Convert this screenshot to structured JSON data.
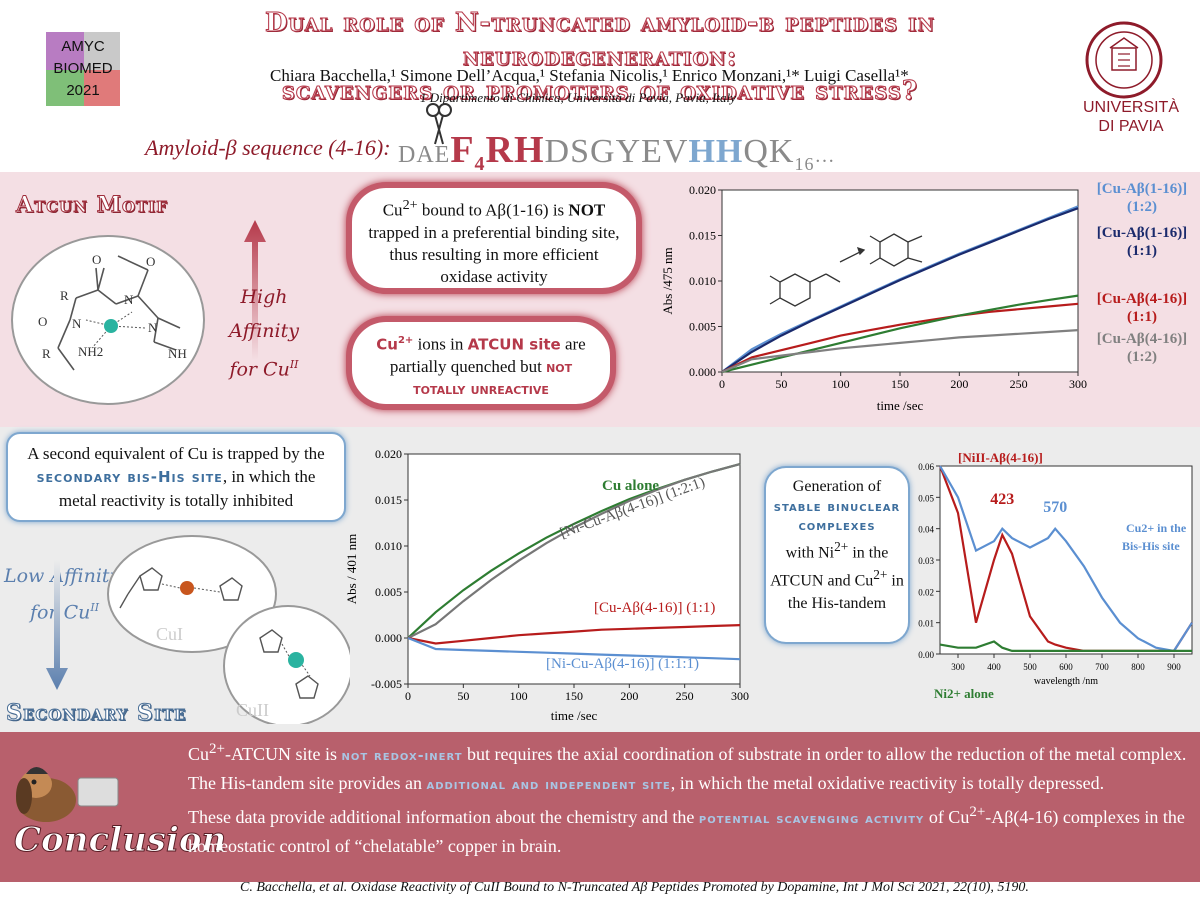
{
  "header": {
    "title_line1": "Dual role of N-truncated amyloid-β peptides in neurodegeneration:",
    "title_line2": "scavengers or promoters of oxidative stress?",
    "authors": "Chiara Bacchella,¹ Simone Dell’Acqua,¹ Stefania Nicolis,¹ Enrico Monzani,¹* Luigi Casella¹*",
    "affiliation": "1 Dipartimento di Chimica, Università di Pavia, Pavia, Italy",
    "logo_left": [
      "AMYC",
      "BIOMED",
      "2021"
    ],
    "logo_right": [
      "UNIVERSITÀ",
      "DI PAVIA"
    ]
  },
  "sequence": {
    "label": "Amyloid-β sequence (4-16):",
    "prefix": "DAE",
    "f": "F",
    "f_sub": "4",
    "rh": "RH",
    "mid": "DSGYEV",
    "hh": "HH",
    "qk": "QK",
    "end_sub": "16",
    "dots": "…"
  },
  "atcun": {
    "heading": "Atcun Motif",
    "affinity_line1": "High Affinity",
    "affinity_line2": "for Cu",
    "affinity_sup": "II",
    "mol_labels": [
      "R",
      "O",
      "N",
      "N",
      "O",
      "R",
      "NH2",
      "N",
      "NH",
      "O"
    ],
    "cloud1_a": "Cu",
    "cloud1_sup": "2+",
    "cloud1_b": " bound to Aβ(1-16) is ",
    "cloud1_bold": "NOT",
    "cloud1_c": " trapped in a preferential binding site, thus resulting in more efficient oxidase activity",
    "cloud2_hl1": "Cu",
    "cloud2_hl1_sup": "2+",
    "cloud2_a": " ions in ",
    "cloud2_hl2": "ATCUN site",
    "cloud2_b": " are partially quenched but ",
    "cloud2_hl3": "not",
    "cloud2_hl4": "totally unreactive"
  },
  "secondary": {
    "heading": "Secondary Site",
    "box_a": "A second equivalent of Cu is trapped by the ",
    "box_hl": "secondary bis-His site",
    "box_b": ", in which the metal reactivity is totally inhibited",
    "affinity_line1": "Low Affinity",
    "affinity_line2": "for Cu",
    "affinity_sup": "II",
    "cu1": "CuI",
    "cu2": "CuII",
    "box2_a": "Generation of",
    "box2_hl": "stable binuclear complexes",
    "box2_b": "with Ni",
    "box2_sup1": "2+",
    "box2_c": " in the ATCUN and Cu",
    "box2_sup2": "2+",
    "box2_d": " in the His-tandem"
  },
  "conclusion": {
    "label": "Conclusion",
    "p1_a": "Cu",
    "p1_sup": "2+",
    "p1_b": "-ATCUN site is ",
    "p1_hl1": "not redox-inert",
    "p1_c": " but requires the axial coordination of substrate in order to allow the reduction of the metal complex. The His-tandem site provides an ",
    "p1_hl2": "additional and independent site",
    "p1_d": ", in which the metal oxidative reactivity is totally depressed.",
    "p2_a": "These data provide additional information about the chemistry and the ",
    "p2_hl": "potential scavenging activity",
    "p2_b": " of Cu",
    "p2_sup": "2+",
    "p2_c": "-Aβ(4-16) complexes in the homeostatic control of “chelatable” copper in brain.",
    "reference": "C. Bacchella, et al. Oxidase Reactivity of CuII Bound to N-Truncated Aβ Peptides Promoted by Dopamine, Int J Mol Sci 2021, 22(10), 5190."
  },
  "colors": {
    "maroon": "#8e1b2a",
    "red": "#b5394a",
    "pink_band": "#f4dfe4",
    "grey_band": "#ececec",
    "concl_band": "#b8606c",
    "blue": "#5b8fd1",
    "navy": "#1a2a6c",
    "green": "#2e7d32",
    "darkred": "#b71c1c",
    "grey": "#808080"
  },
  "chart_data": [
    {
      "type": "line",
      "xlabel": "time /sec",
      "ylabel": "Abs /475 nm",
      "xlim": [
        0,
        300
      ],
      "ylim": [
        0,
        0.02
      ],
      "xticks": [
        0,
        50,
        100,
        150,
        200,
        250,
        300
      ],
      "yticks": [
        0.0,
        0.005,
        0.01,
        0.015,
        0.02
      ],
      "x": [
        0,
        25,
        50,
        75,
        100,
        125,
        150,
        175,
        200,
        225,
        250,
        275,
        300
      ],
      "series": [
        {
          "name": "[Cu-Aβ(1-16)] (1:2)",
          "color": "#5b8fd1",
          "values": [
            0,
            0.0025,
            0.0042,
            0.0057,
            0.0072,
            0.0087,
            0.0102,
            0.0116,
            0.013,
            0.0143,
            0.0156,
            0.0169,
            0.0182
          ]
        },
        {
          "name": "[Cu-Aβ(1-16)] (1:1)",
          "color": "#1a2a6c",
          "values": [
            0,
            0.0022,
            0.004,
            0.0056,
            0.0071,
            0.0086,
            0.0101,
            0.0115,
            0.0129,
            0.0142,
            0.0155,
            0.0168,
            0.018
          ]
        },
        {
          "name": "[Cu-Aβ(4-16)] (1:1)",
          "color": "#b71c1c",
          "values": [
            0,
            0.0016,
            0.0024,
            0.0032,
            0.004,
            0.0046,
            0.0052,
            0.0057,
            0.0062,
            0.0066,
            0.0069,
            0.0072,
            0.0075
          ]
        },
        {
          "name": "[Cu-Aβ(4-16)] (1:1) green",
          "color": "#2e7d32",
          "values": [
            0,
            0.0008,
            0.0016,
            0.0024,
            0.0032,
            0.004,
            0.0048,
            0.0055,
            0.0062,
            0.0068,
            0.0074,
            0.0079,
            0.0084
          ]
        },
        {
          "name": "[Cu-Aβ(4-16)] (1:2)",
          "color": "#808080",
          "values": [
            0,
            0.0014,
            0.0018,
            0.0022,
            0.0026,
            0.0029,
            0.0032,
            0.0035,
            0.0038,
            0.004,
            0.0042,
            0.0044,
            0.0046
          ]
        }
      ],
      "legend": [
        {
          "label": "[Cu-Aβ(1-16)]",
          "ratio": "(1:2)",
          "color": "#5b8fd1"
        },
        {
          "label": "[Cu-Aβ(1-16)]",
          "ratio": "(1:1)",
          "color": "#1a2a6c"
        },
        {
          "label": "[Cu-Aβ(4-16)]",
          "ratio": "(1:1)",
          "color": "#b71c1c"
        },
        {
          "label": "[Cu-Aβ(4-16)]",
          "ratio": "(1:2)",
          "color": "#808080"
        }
      ]
    },
    {
      "type": "line",
      "xlabel": "time /sec",
      "ylabel": "Abs / 401 nm",
      "xlim": [
        0,
        300
      ],
      "ylim": [
        -0.005,
        0.02
      ],
      "xticks": [
        0,
        50,
        100,
        150,
        200,
        250,
        300
      ],
      "yticks": [
        -0.005,
        0.0,
        0.005,
        0.01,
        0.015,
        0.02
      ],
      "x": [
        0,
        25,
        50,
        75,
        100,
        125,
        150,
        175,
        200,
        225,
        250,
        275,
        300
      ],
      "series": [
        {
          "name": "Cu alone",
          "color": "#2e7d32",
          "values": [
            0,
            0.0028,
            0.0052,
            0.0073,
            0.0092,
            0.0109,
            0.0124,
            0.0138,
            0.0151,
            0.0162,
            0.0172,
            0.0181,
            0.0189
          ]
        },
        {
          "name": "[Ni-Cu-Aβ(4-16)] (1:2:1)",
          "color": "#777777",
          "values": [
            0,
            0.0015,
            0.004,
            0.0063,
            0.0084,
            0.0103,
            0.012,
            0.0135,
            0.0149,
            0.0161,
            0.0172,
            0.0181,
            0.0189
          ]
        },
        {
          "name": "[Cu-Aβ(4-16)] (1:1)",
          "color": "#b71c1c",
          "values": [
            0,
            -0.0006,
            -0.0003,
            0.0,
            0.0003,
            0.0005,
            0.0007,
            0.0009,
            0.001,
            0.0011,
            0.0012,
            0.0013,
            0.0014
          ]
        },
        {
          "name": "[Ni-Cu-Aβ(4-16)] (1:1:1)",
          "color": "#5b8fd1",
          "values": [
            0,
            -0.0012,
            -0.0013,
            -0.0014,
            -0.0015,
            -0.0016,
            -0.0017,
            -0.0018,
            -0.0019,
            -0.002,
            -0.0021,
            -0.0022,
            -0.0023
          ]
        }
      ],
      "labels": [
        {
          "text": "Cu alone",
          "color": "#2e7d32"
        },
        {
          "text": "[Ni-Cu-Aβ(4-16)] (1:2:1)",
          "color": "#555555"
        },
        {
          "text": "[Cu-Aβ(4-16)] (1:1)",
          "color": "#b71c1c"
        },
        {
          "text": "[Ni-Cu-Aβ(4-16)] (1:1:1)",
          "color": "#5b8fd1"
        }
      ]
    },
    {
      "type": "line",
      "xlabel": "wavelength /nm",
      "ylabel": "",
      "xlim": [
        250,
        950
      ],
      "ylim": [
        0,
        0.06
      ],
      "xticks": [
        300,
        400,
        500,
        600,
        700,
        800,
        900
      ],
      "yticks": [
        0.0,
        0.01,
        0.02,
        0.03,
        0.04,
        0.05,
        0.06
      ],
      "x": [
        250,
        300,
        350,
        400,
        423,
        450,
        500,
        550,
        570,
        600,
        650,
        700,
        750,
        800,
        850,
        900,
        950
      ],
      "series": [
        {
          "name": "[NiII-Aβ(4-16)]",
          "color": "#b71c1c",
          "values": [
            0.06,
            0.045,
            0.01,
            0.03,
            0.038,
            0.032,
            0.012,
            0.004,
            0.003,
            0.002,
            0.001,
            0.001,
            0.001,
            0.001,
            0.001,
            0.001,
            0.01
          ]
        },
        {
          "name": "Cu2+ in the Bis-His site",
          "color": "#5b8fd1",
          "values": [
            0.06,
            0.05,
            0.033,
            0.036,
            0.04,
            0.037,
            0.034,
            0.037,
            0.04,
            0.036,
            0.028,
            0.018,
            0.01,
            0.005,
            0.002,
            0.001,
            0.01
          ]
        },
        {
          "name": "Ni2+ alone",
          "color": "#2e7d32",
          "values": [
            0.003,
            0.002,
            0.002,
            0.004,
            0.002,
            0.001,
            0.001,
            0.001,
            0.001,
            0.001,
            0.001,
            0.001,
            0.001,
            0.001,
            0.001,
            0.001,
            0.001
          ]
        }
      ],
      "peaks": [
        {
          "x": 423,
          "label": "423",
          "color": "#b71c1c"
        },
        {
          "x": 570,
          "label": "570",
          "color": "#5b8fd1"
        }
      ],
      "annotations": [
        {
          "text_a": "[Ni",
          "sup": "II",
          "text_b": "-Aβ(4-16)]",
          "color": "#b71c1c"
        },
        {
          "text_a": "Cu",
          "sup": "2+",
          "text_b": " in the",
          "text_c": "Bis-His site",
          "color": "#5b8fd1"
        },
        {
          "text_a": "Ni",
          "sup": "2+",
          "text_b": " alone",
          "color": "#2e7d32"
        }
      ]
    }
  ]
}
